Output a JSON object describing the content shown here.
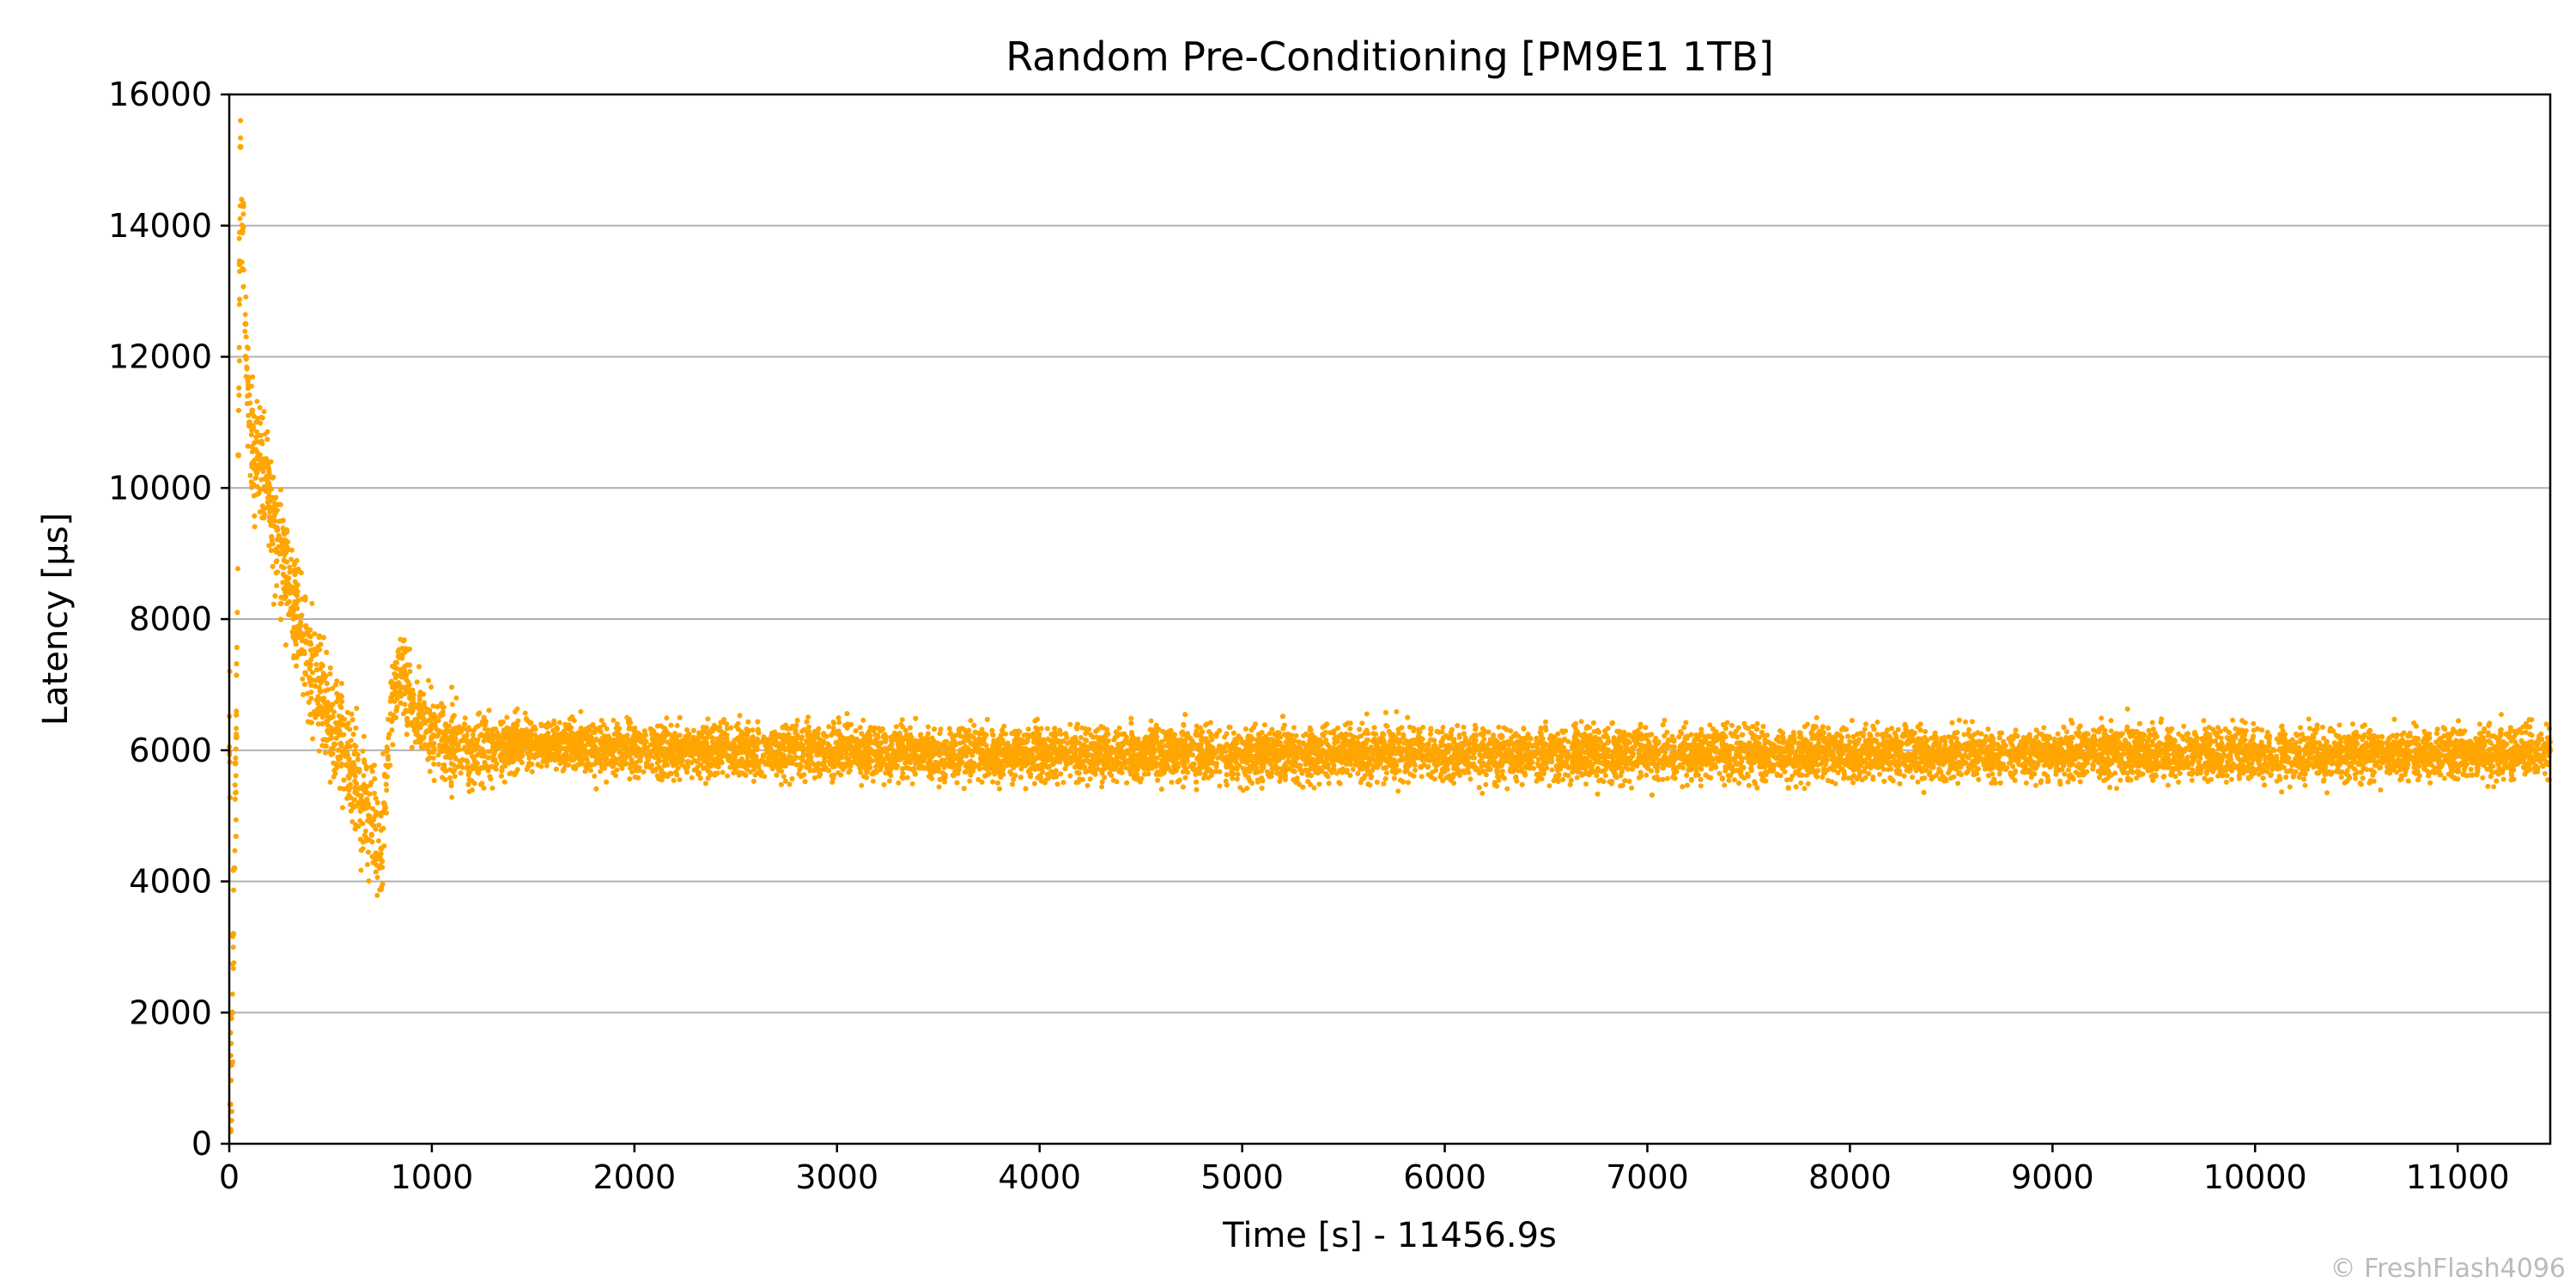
{
  "chart_data": {
    "type": "scatter",
    "title": "Random Pre-Conditioning [PM9E1 1TB]",
    "xlabel": "Time [s] - 11456.9s",
    "ylabel": "Latency [µs]",
    "xlim": [
      0,
      11456.9
    ],
    "ylim": [
      0,
      16000
    ],
    "x_ticks": [
      0,
      1000,
      2000,
      3000,
      4000,
      5000,
      6000,
      7000,
      8000,
      9000,
      10000,
      11000
    ],
    "y_ticks": [
      0,
      2000,
      4000,
      6000,
      8000,
      10000,
      12000,
      14000,
      16000
    ],
    "grid": "horizontal",
    "legend": "none",
    "series": [
      {
        "color": "#ffa500",
        "points": [
          [
            5,
            600
          ],
          [
            10,
            1200
          ],
          [
            15,
            2000
          ],
          [
            20,
            3200
          ],
          [
            25,
            4200
          ],
          [
            30,
            5800
          ],
          [
            35,
            6200
          ],
          [
            45,
            10500
          ],
          [
            55,
            15200
          ],
          [
            80,
            12500
          ],
          [
            100,
            11000
          ],
          [
            150,
            10500
          ],
          [
            200,
            9800
          ],
          [
            250,
            9000
          ],
          [
            300,
            8400
          ],
          [
            350,
            7900
          ],
          [
            400,
            7300
          ],
          [
            450,
            6900
          ],
          [
            500,
            6500
          ],
          [
            550,
            6100
          ],
          [
            600,
            5700
          ],
          [
            650,
            5300
          ],
          [
            700,
            4900
          ],
          [
            750,
            4500
          ],
          [
            800,
            6800
          ],
          [
            850,
            7200
          ],
          [
            900,
            6700
          ],
          [
            950,
            6400
          ],
          [
            1000,
            6200
          ],
          [
            1100,
            6100
          ],
          [
            1200,
            6000
          ],
          [
            1500,
            6100
          ],
          [
            2000,
            6000
          ],
          [
            2500,
            6000
          ],
          [
            3000,
            6000
          ],
          [
            3500,
            5950
          ],
          [
            4000,
            5950
          ],
          [
            4500,
            5950
          ],
          [
            5000,
            5950
          ],
          [
            5500,
            5950
          ],
          [
            6000,
            5950
          ],
          [
            6500,
            5950
          ],
          [
            7000,
            5950
          ],
          [
            7500,
            5950
          ],
          [
            8000,
            5950
          ],
          [
            8500,
            5950
          ],
          [
            9000,
            5950
          ],
          [
            9500,
            5950
          ],
          [
            10000,
            5950
          ],
          [
            10500,
            5950
          ],
          [
            11000,
            5950
          ],
          [
            11456,
            6000
          ]
        ]
      }
    ],
    "watermark": "© FreshFlash4096"
  }
}
